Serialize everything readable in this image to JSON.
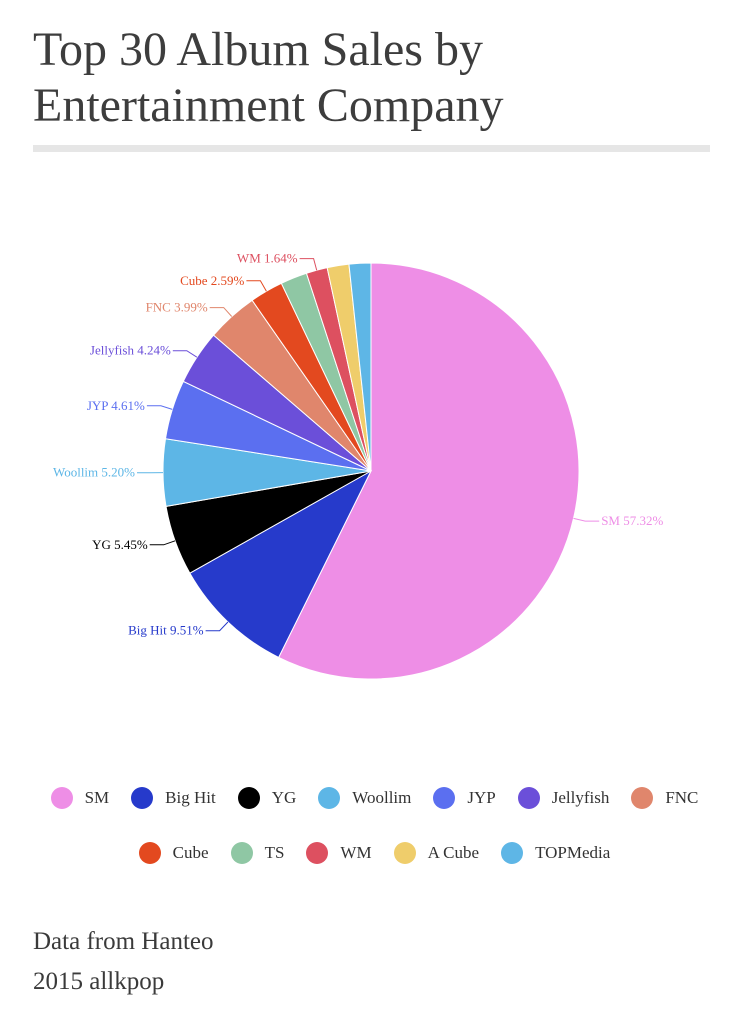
{
  "title": "Top 30 Album Sales by Entertainment Company",
  "source_line": "Data from Hanteo",
  "copyright_line": "2015 allkpop",
  "chart_data": {
    "type": "pie",
    "title": "Top 30 Album Sales by Entertainment Company",
    "unit": "%",
    "slices": [
      {
        "name": "SM",
        "value": 57.32,
        "label": "SM 57.32%",
        "color": "#ee8ee6"
      },
      {
        "name": "Big Hit",
        "value": 9.51,
        "label": "Big Hit 9.51%",
        "color": "#263acb"
      },
      {
        "name": "YG",
        "value": 5.45,
        "label": "YG 5.45%",
        "color": "#000000"
      },
      {
        "name": "Woollim",
        "value": 5.2,
        "label": "Woollim 5.20%",
        "color": "#5db6e6"
      },
      {
        "name": "JYP",
        "value": 4.61,
        "label": "JYP 4.61%",
        "color": "#5b6ff0"
      },
      {
        "name": "Jellyfish",
        "value": 4.24,
        "label": "Jellyfish 4.24%",
        "color": "#6b4fd9"
      },
      {
        "name": "FNC",
        "value": 3.99,
        "label": "FNC 3.99%",
        "color": "#e0866c"
      },
      {
        "name": "Cube",
        "value": 2.59,
        "label": "Cube 2.59%",
        "color": "#e3491f"
      },
      {
        "name": "TS",
        "value": 2.07,
        "label": "",
        "color": "#8fc7a4"
      },
      {
        "name": "WM",
        "value": 1.64,
        "label": "WM 1.64%",
        "color": "#dd5060"
      },
      {
        "name": "A Cube",
        "value": 1.69,
        "label": "",
        "color": "#efcd6b"
      },
      {
        "name": "TOPMedia",
        "value": 1.69,
        "label": "",
        "color": "#5eb6e6"
      }
    ],
    "legend": {
      "placement": "bottom",
      "rows": [
        [
          "SM",
          "Big Hit",
          "YG",
          "Woollim",
          "JYP",
          "Jellyfish",
          "FNC"
        ],
        [
          "Cube",
          "TS",
          "WM",
          "A Cube",
          "TOPMedia"
        ]
      ]
    }
  }
}
